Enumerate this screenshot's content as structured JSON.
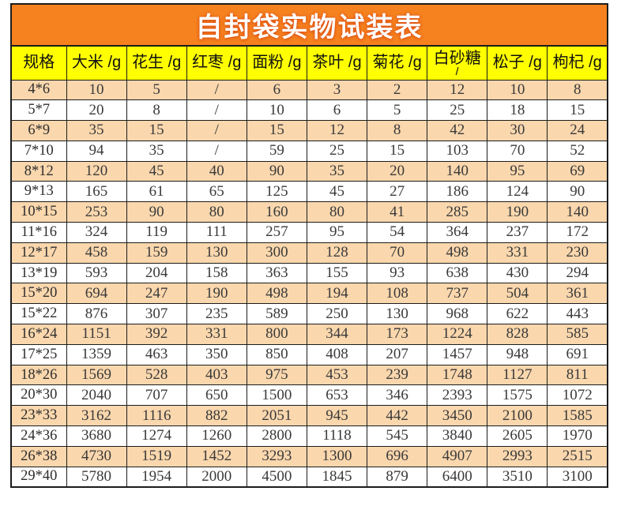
{
  "title": "自封袋实物试装表",
  "colors": {
    "band_orange": "#F5821F",
    "header_yellow": "#FFFF00",
    "row_peach": "#FAD7AD",
    "row_white": "#FFFFFF",
    "grid_black": "#1C1C1C",
    "text_dark": "#3A3A3A"
  },
  "table": {
    "columns": [
      {
        "name": "规格",
        "unit": ""
      },
      {
        "name": "大米",
        "unit": "/g"
      },
      {
        "name": "花生",
        "unit": "/g"
      },
      {
        "name": "红枣",
        "unit": "/g"
      },
      {
        "name": "面粉",
        "unit": "/g"
      },
      {
        "name": "茶叶",
        "unit": "/g"
      },
      {
        "name": "菊花",
        "unit": "/g"
      },
      {
        "name": "白砂糖",
        "unit": "/",
        "wrap": true
      },
      {
        "name": "松子",
        "unit": "/g"
      },
      {
        "name": "枸杞",
        "unit": "/g"
      }
    ],
    "rows": [
      {
        "spec": "4*6",
        "values": [
          "10",
          "5",
          "/",
          "6",
          "3",
          "2",
          "12",
          "10",
          "8"
        ]
      },
      {
        "spec": "5*7",
        "values": [
          "20",
          "8",
          "/",
          "10",
          "6",
          "5",
          "25",
          "18",
          "15"
        ]
      },
      {
        "spec": "6*9",
        "values": [
          "35",
          "15",
          "/",
          "15",
          "12",
          "8",
          "42",
          "30",
          "24"
        ]
      },
      {
        "spec": "7*10",
        "values": [
          "94",
          "35",
          "/",
          "59",
          "25",
          "15",
          "103",
          "70",
          "52"
        ]
      },
      {
        "spec": "8*12",
        "values": [
          "120",
          "45",
          "40",
          "90",
          "35",
          "20",
          "140",
          "95",
          "69"
        ]
      },
      {
        "spec": "9*13",
        "values": [
          "165",
          "61",
          "65",
          "125",
          "45",
          "27",
          "186",
          "124",
          "90"
        ]
      },
      {
        "spec": "10*15",
        "values": [
          "253",
          "90",
          "80",
          "160",
          "80",
          "41",
          "285",
          "190",
          "140"
        ]
      },
      {
        "spec": "11*16",
        "values": [
          "324",
          "119",
          "111",
          "257",
          "95",
          "54",
          "364",
          "237",
          "172"
        ]
      },
      {
        "spec": "12*17",
        "values": [
          "458",
          "159",
          "130",
          "300",
          "128",
          "70",
          "498",
          "331",
          "230"
        ]
      },
      {
        "spec": "13*19",
        "values": [
          "593",
          "204",
          "158",
          "363",
          "155",
          "93",
          "638",
          "430",
          "294"
        ]
      },
      {
        "spec": "15*20",
        "values": [
          "694",
          "247",
          "190",
          "498",
          "194",
          "108",
          "737",
          "504",
          "361"
        ]
      },
      {
        "spec": "15*22",
        "values": [
          "876",
          "307",
          "235",
          "589",
          "250",
          "130",
          "968",
          "622",
          "443"
        ]
      },
      {
        "spec": "16*24",
        "values": [
          "1151",
          "392",
          "331",
          "800",
          "344",
          "173",
          "1224",
          "828",
          "585"
        ]
      },
      {
        "spec": "17*25",
        "values": [
          "1359",
          "463",
          "350",
          "850",
          "408",
          "207",
          "1457",
          "948",
          "691"
        ]
      },
      {
        "spec": "18*26",
        "values": [
          "1569",
          "528",
          "403",
          "975",
          "453",
          "239",
          "1748",
          "1127",
          "811"
        ]
      },
      {
        "spec": "20*30",
        "values": [
          "2040",
          "707",
          "650",
          "1500",
          "653",
          "346",
          "2393",
          "1575",
          "1072"
        ]
      },
      {
        "spec": "23*33",
        "values": [
          "3162",
          "1116",
          "882",
          "2051",
          "945",
          "442",
          "3450",
          "2100",
          "1585"
        ]
      },
      {
        "spec": "24*36",
        "values": [
          "3680",
          "1274",
          "1260",
          "2800",
          "1118",
          "545",
          "3840",
          "2605",
          "1970"
        ]
      },
      {
        "spec": "26*38",
        "values": [
          "4730",
          "1519",
          "1452",
          "3293",
          "1300",
          "696",
          "4907",
          "2993",
          "2515"
        ]
      },
      {
        "spec": "29*40",
        "values": [
          "5780",
          "1954",
          "2000",
          "4500",
          "1845",
          "879",
          "6400",
          "3510",
          "3100"
        ]
      }
    ]
  }
}
